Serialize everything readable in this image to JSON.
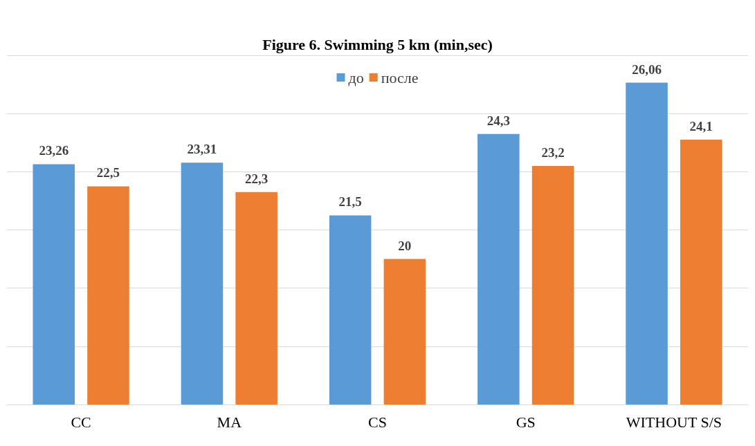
{
  "chart_data": {
    "type": "bar",
    "title": "Figure 6. Swimming 5 km (min,sec)",
    "categories": [
      "CC",
      "MA",
      "CS",
      "GS",
      "WITHOUT S/S"
    ],
    "series": [
      {
        "name": "до",
        "color": "#5b9bd5",
        "values": [
          23.26,
          23.31,
          21.5,
          24.3,
          26.06
        ],
        "value_labels": [
          "23,26",
          "23,31",
          "21,5",
          "24,3",
          "26,06"
        ]
      },
      {
        "name": "после",
        "color": "#ed7d31",
        "values": [
          22.5,
          22.3,
          20,
          23.2,
          24.1
        ],
        "value_labels": [
          "22,5",
          "22,3",
          "20",
          "23,2",
          "24,1"
        ]
      }
    ],
    "ylim": [
      15,
      27
    ],
    "yticks": [
      {
        "value": 15,
        "label": null
      },
      {
        "value": 17,
        "label": null
      },
      {
        "value": 19,
        "label": null
      },
      {
        "value": 21,
        "label": null
      },
      {
        "value": 23,
        "label": null
      },
      {
        "value": 25,
        "label": null
      },
      {
        "value": 27,
        "label": null
      }
    ],
    "tick_labels": "x",
    "grid": "y",
    "legend": "top"
  }
}
